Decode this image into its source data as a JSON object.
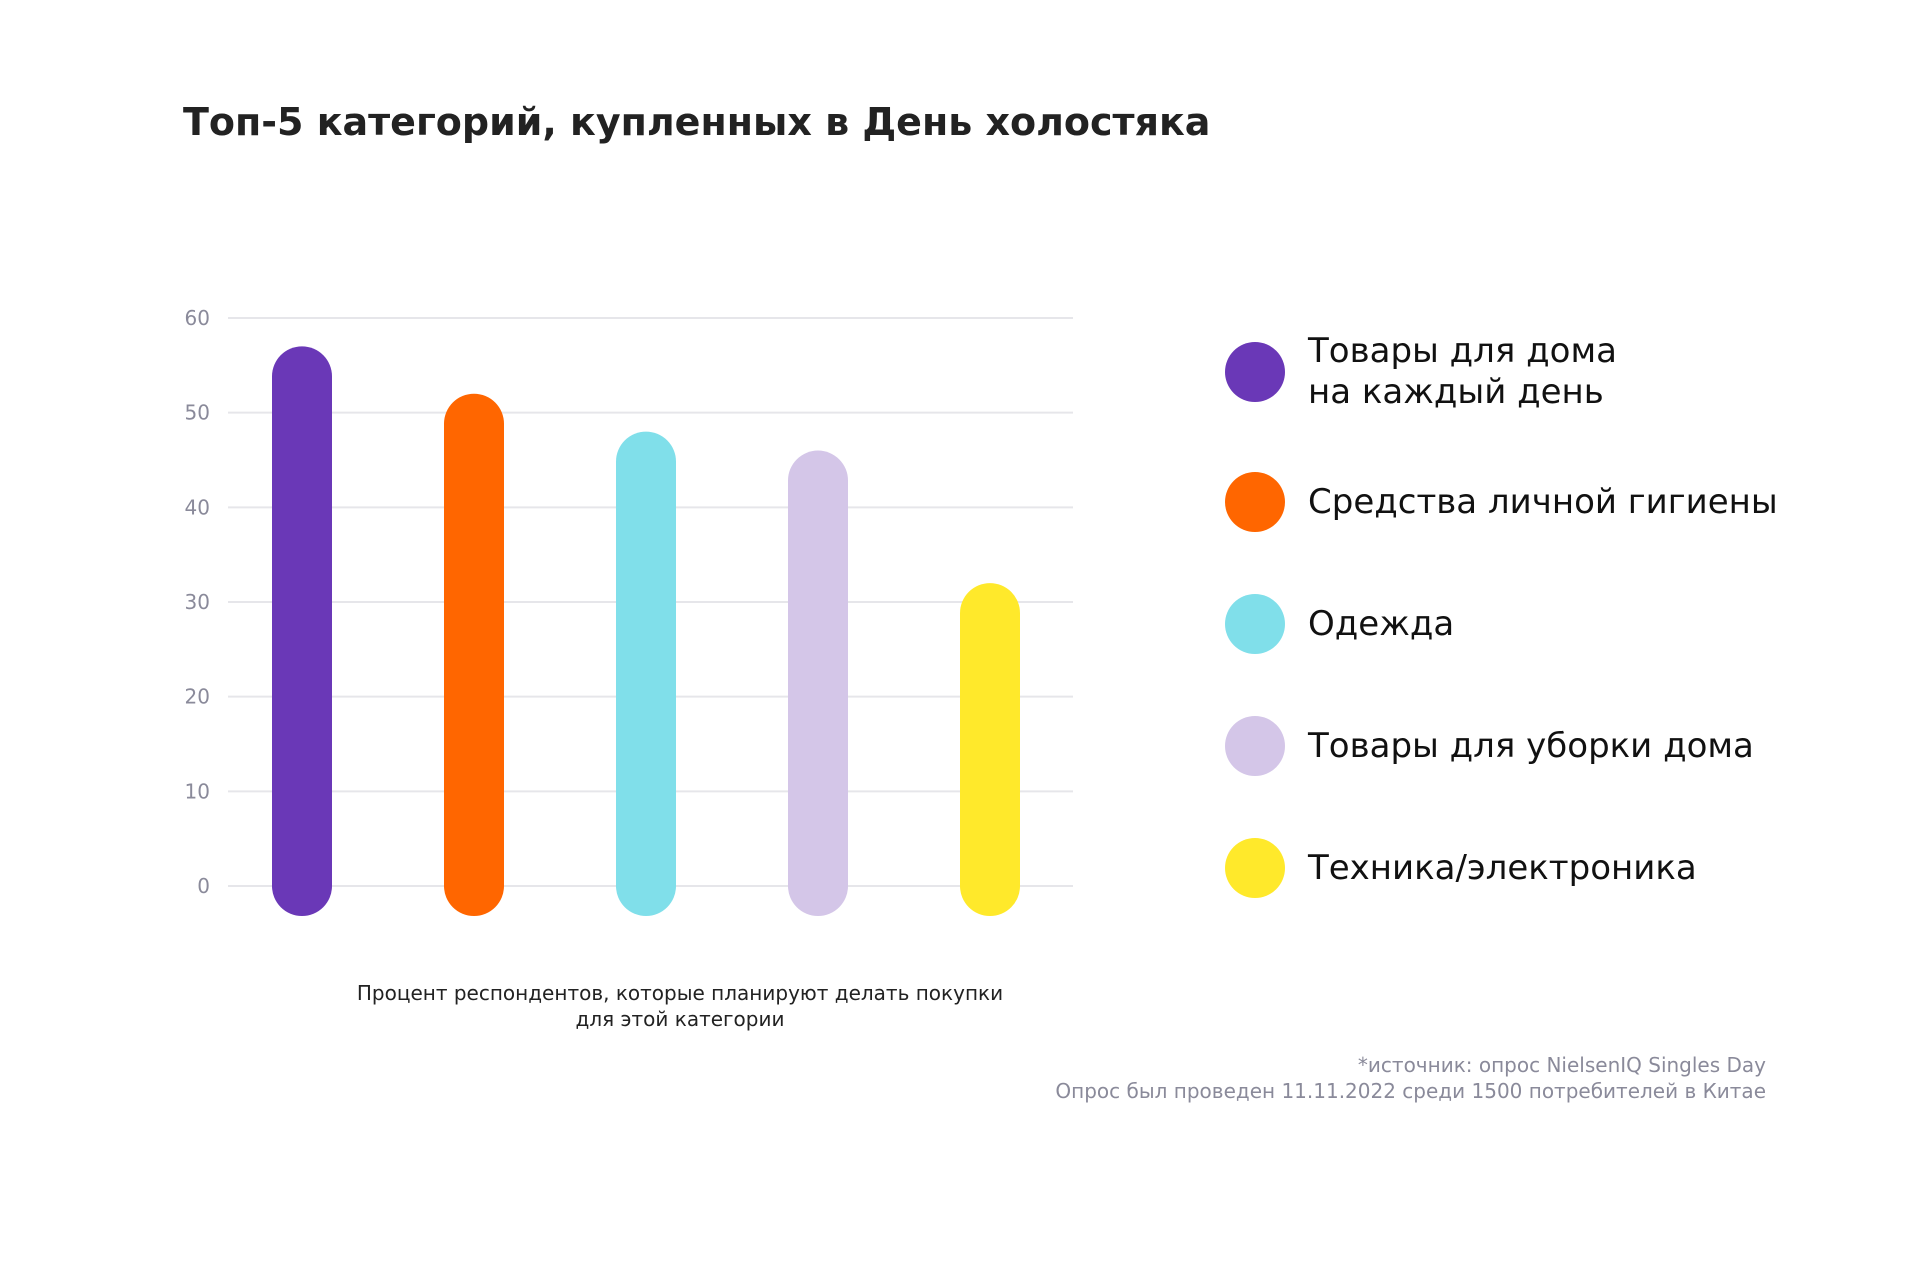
{
  "chart_data": {
    "type": "bar",
    "title": "Топ-5 категорий, купленных в День холостяка",
    "categories": [
      "Товары для дома\nна каждый день",
      "Средства личной гигиены",
      "Одежда",
      "Товары для уборки дома",
      "Техника/электроника"
    ],
    "values": [
      57,
      52,
      48,
      46,
      32
    ],
    "colors": [
      "#6a38b7",
      "#ff6600",
      "#80dfea",
      "#d4c6e8",
      "#ffe92b"
    ],
    "ylim": [
      0,
      60
    ],
    "yticks": [
      0,
      10,
      20,
      30,
      40,
      50,
      60
    ],
    "grid": true,
    "xlabel": "Процент респондентов, которые планируют делать покупки\nдля этой категории",
    "ylabel": "",
    "legend_position": "right",
    "source_line1": "*источник: опрос NielsenIQ Singles Day",
    "source_line2": "Опрос был проведен 11.11.2022 среди 1500 потребителей в Китае"
  }
}
